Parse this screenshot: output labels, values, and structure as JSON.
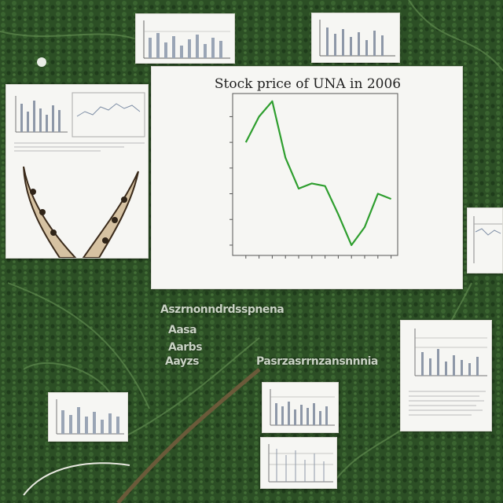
{
  "main_chart": {
    "title": "Stock price of UNA in 2006",
    "chart_data": {
      "type": "line",
      "title": "Stock price of UNA in 2006",
      "x": [
        1,
        2,
        3,
        4,
        5,
        6,
        7,
        8,
        9,
        10,
        11,
        12
      ],
      "values": [
        5.0,
        5.5,
        5.8,
        4.7,
        4.1,
        4.2,
        4.15,
        3.6,
        3.0,
        3.35,
        4.0,
        3.9
      ],
      "ylim": [
        2.8,
        5.95
      ],
      "line_color": "#2e9e2e",
      "grid": false
    }
  },
  "text_labels": {
    "line1": "Aszrnonndrdsspnena",
    "line2": "Aasa",
    "line3": "Aarbs",
    "line4": "Aayzs",
    "line5": "Pasrzasrrnzansnnnia"
  },
  "colors": {
    "foliage": "#2c4f25",
    "card": "#f6f6f3"
  }
}
